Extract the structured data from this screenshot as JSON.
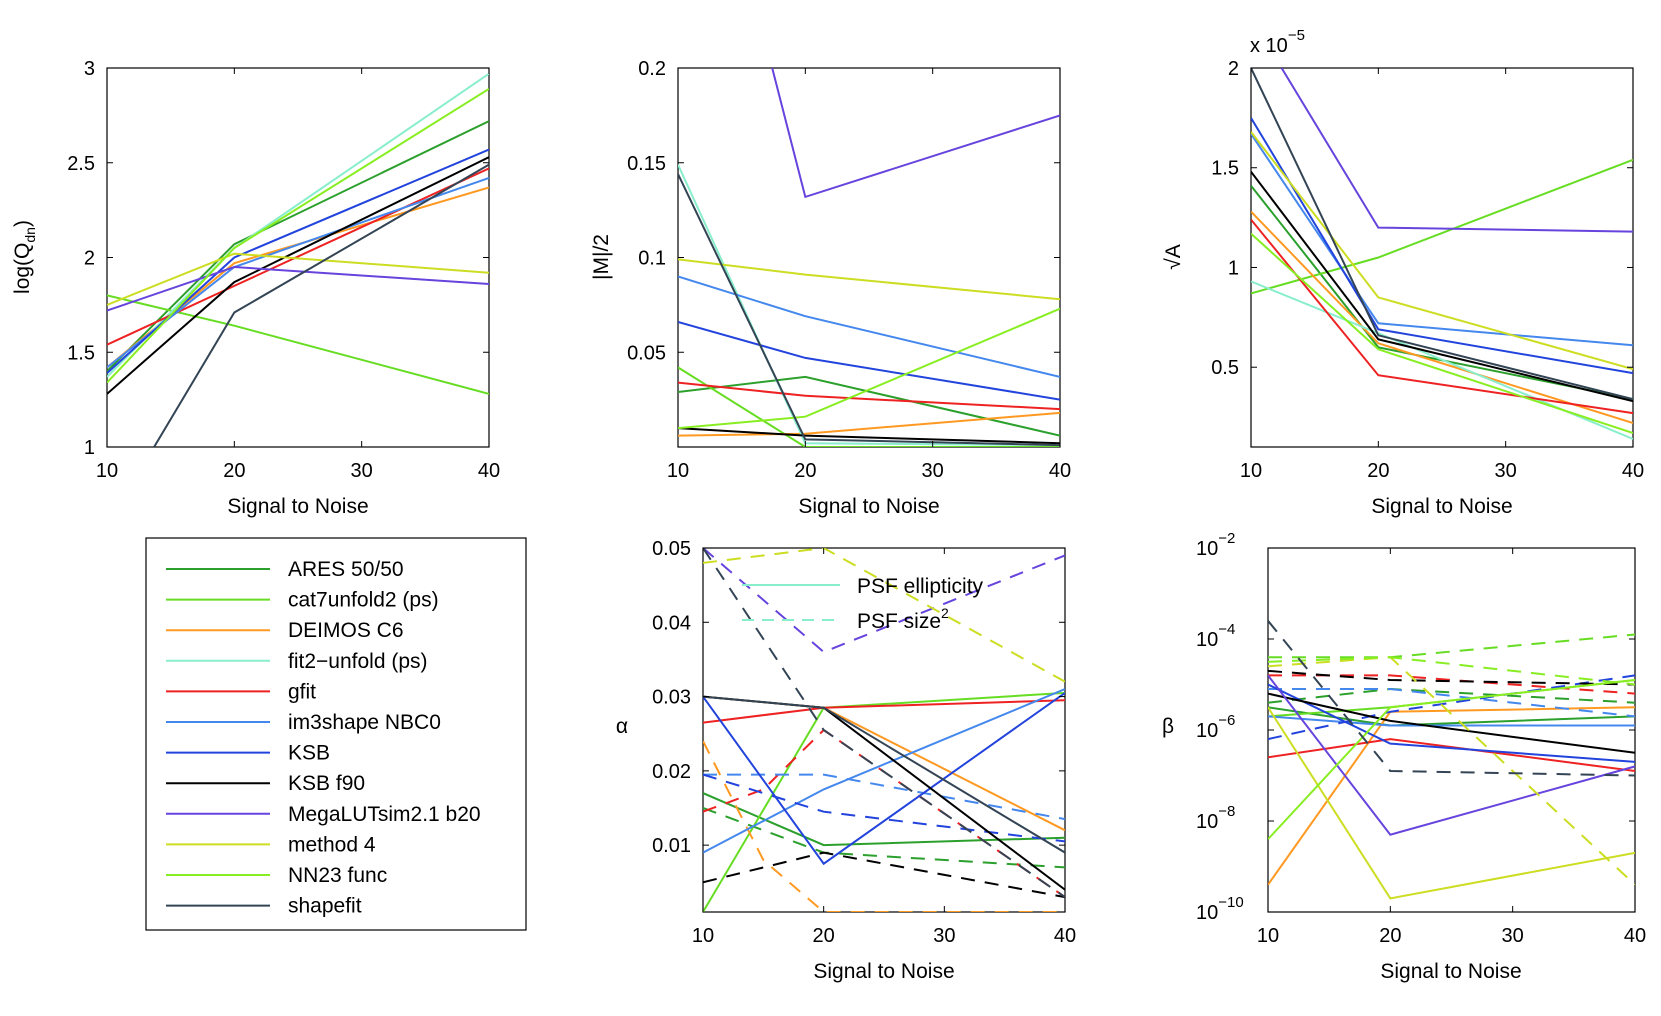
{
  "colors": {
    "ARES": "#2ca02c",
    "cat7": "#66dd22",
    "DEIMOS": "#ff9922",
    "fit2": "#88eecc",
    "gfit": "#ee2222",
    "im3": "#4488ee",
    "KSB": "#2244dd",
    "KSBf90": "#000000",
    "Mega": "#6644dd",
    "method4": "#ccdd22",
    "NN23": "#88ee22",
    "shapefit": "#334455"
  },
  "legend": {
    "entries": [
      {
        "key": "ARES",
        "label": "ARES 50/50"
      },
      {
        "key": "cat7",
        "label": "cat7unfold2 (ps)"
      },
      {
        "key": "DEIMOS",
        "label": "DEIMOS C6"
      },
      {
        "key": "fit2",
        "label": "fit2−unfold (ps)"
      },
      {
        "key": "gfit",
        "label": "gfit"
      },
      {
        "key": "im3",
        "label": "im3shape NBC0"
      },
      {
        "key": "KSB",
        "label": "KSB"
      },
      {
        "key": "KSBf90",
        "label": "KSB f90"
      },
      {
        "key": "Mega",
        "label": "MegaLUTsim2.1 b20"
      },
      {
        "key": "method4",
        "label": "method 4"
      },
      {
        "key": "NN23",
        "label": "NN23 func"
      },
      {
        "key": "shapefit",
        "label": "shapefit"
      }
    ]
  },
  "chart_data": [
    {
      "id": "q",
      "type": "line",
      "title": "",
      "xlabel": "Signal to Noise",
      "ylabel_main": "log(Q",
      "ylabel_sub": "dn",
      "ylabel_end": ")",
      "x": [
        10,
        20,
        40
      ],
      "xlim": [
        10,
        40
      ],
      "ylim": [
        1,
        3
      ],
      "xticks": [
        10,
        20,
        30,
        40
      ],
      "xtick_labels": [
        "10",
        "20",
        "30",
        "40"
      ],
      "yticks": [
        1,
        1.5,
        2,
        2.5,
        3
      ],
      "ytick_labels": [
        "1",
        "1.5",
        "2",
        "2.5",
        "3"
      ],
      "series": [
        {
          "key": "ARES",
          "values": [
            1.4,
            2.07,
            2.72
          ]
        },
        {
          "key": "cat7",
          "values": [
            1.8,
            1.64,
            1.28
          ]
        },
        {
          "key": "DEIMOS",
          "values": [
            1.42,
            1.97,
            2.37
          ]
        },
        {
          "key": "fit2",
          "values": [
            1.37,
            2.05,
            2.97
          ]
        },
        {
          "key": "gfit",
          "values": [
            1.54,
            1.85,
            2.47
          ]
        },
        {
          "key": "im3",
          "values": [
            1.42,
            1.95,
            2.42
          ]
        },
        {
          "key": "KSB",
          "values": [
            1.39,
            2.0,
            2.57
          ]
        },
        {
          "key": "KSBf90",
          "values": [
            1.28,
            1.87,
            2.53
          ]
        },
        {
          "key": "Mega",
          "values": [
            1.72,
            1.95,
            1.86
          ]
        },
        {
          "key": "method4",
          "values": [
            1.75,
            2.02,
            1.92
          ]
        },
        {
          "key": "NN23",
          "values": [
            1.34,
            2.05,
            2.89
          ]
        },
        {
          "key": "shapefit",
          "x": [
            13.7,
            20,
            40
          ],
          "values": [
            1.0,
            1.71,
            2.49
          ]
        }
      ]
    },
    {
      "id": "m",
      "type": "line",
      "title": "",
      "xlabel": "Signal to Noise",
      "ylabel": "|M|/2",
      "x": [
        10,
        20,
        40
      ],
      "xlim": [
        10,
        40
      ],
      "ylim": [
        0,
        0.2
      ],
      "xticks": [
        10,
        20,
        30,
        40
      ],
      "xtick_labels": [
        "10",
        "20",
        "30",
        "40"
      ],
      "yticks": [
        0.05,
        0.1,
        0.15,
        0.2
      ],
      "ytick_labels": [
        "0.05",
        "0.1",
        "0.15",
        "0.2"
      ],
      "series": [
        {
          "key": "ARES",
          "values": [
            0.029,
            0.037,
            0.006
          ]
        },
        {
          "key": "cat7",
          "values": [
            0.042,
            0.0,
            0.0
          ]
        },
        {
          "key": "DEIMOS",
          "values": [
            0.006,
            0.007,
            0.018
          ]
        },
        {
          "key": "fit2",
          "values": [
            0.149,
            0.002,
            0.001
          ]
        },
        {
          "key": "gfit",
          "values": [
            0.034,
            0.027,
            0.02
          ]
        },
        {
          "key": "im3",
          "values": [
            0.09,
            0.069,
            0.037
          ]
        },
        {
          "key": "KSB",
          "values": [
            0.066,
            0.047,
            0.025
          ]
        },
        {
          "key": "KSBf90",
          "values": [
            0.01,
            0.006,
            0.002
          ]
        },
        {
          "key": "Mega",
          "x": [
            17.4,
            20,
            40
          ],
          "values": [
            0.2,
            0.132,
            0.175
          ]
        },
        {
          "key": "method4",
          "values": [
            0.099,
            0.091,
            0.078
          ]
        },
        {
          "key": "NN23",
          "values": [
            0.01,
            0.016,
            0.073
          ]
        },
        {
          "key": "shapefit",
          "values": [
            0.144,
            0.004,
            0.001
          ]
        }
      ]
    },
    {
      "id": "a",
      "type": "line",
      "title": "",
      "xlabel": "Signal to Noise",
      "ylabel": "√A",
      "exponent_base": "x 10",
      "exponent_power": "−5",
      "x": [
        10,
        20,
        40
      ],
      "xlim": [
        10,
        40
      ],
      "ylim": [
        0.1,
        2.0
      ],
      "xticks": [
        10,
        20,
        30,
        40
      ],
      "xtick_labels": [
        "10",
        "20",
        "30",
        "40"
      ],
      "yticks": [
        0.5,
        1.0,
        1.5,
        2.0
      ],
      "ytick_labels": [
        "0.5",
        "1",
        "1.5",
        "2"
      ],
      "series": [
        {
          "key": "ARES",
          "values": [
            1.41,
            0.6,
            0.34
          ]
        },
        {
          "key": "cat7",
          "values": [
            0.87,
            1.05,
            1.54
          ]
        },
        {
          "key": "DEIMOS",
          "values": [
            1.28,
            0.62,
            0.22
          ]
        },
        {
          "key": "fit2",
          "values": [
            0.93,
            0.67,
            0.14
          ]
        },
        {
          "key": "gfit",
          "values": [
            1.24,
            0.46,
            0.27
          ]
        },
        {
          "key": "im3",
          "values": [
            1.67,
            0.72,
            0.61
          ]
        },
        {
          "key": "KSB",
          "values": [
            1.75,
            0.69,
            0.47
          ]
        },
        {
          "key": "KSBf90",
          "values": [
            1.48,
            0.64,
            0.33
          ]
        },
        {
          "key": "Mega",
          "x": [
            12.4,
            20,
            40
          ],
          "values": [
            2.0,
            1.2,
            1.18
          ]
        },
        {
          "key": "method4",
          "values": [
            1.68,
            0.85,
            0.49
          ]
        },
        {
          "key": "NN23",
          "values": [
            1.17,
            0.59,
            0.17
          ]
        },
        {
          "key": "shapefit",
          "values": [
            2.0,
            0.66,
            0.34
          ]
        }
      ]
    },
    {
      "id": "alpha",
      "type": "line",
      "title": "",
      "xlabel": "Signal to Noise",
      "ylabel": "α",
      "x": [
        10,
        20,
        40
      ],
      "xlim": [
        10,
        40
      ],
      "ylim": [
        0.001,
        0.05
      ],
      "xticks": [
        10,
        20,
        30,
        40
      ],
      "xtick_labels": [
        "10",
        "20",
        "30",
        "40"
      ],
      "yticks": [
        0.01,
        0.02,
        0.03,
        0.04,
        0.05
      ],
      "ytick_labels": [
        "0.01",
        "0.02",
        "0.03",
        "0.04",
        "0.05"
      ],
      "inner_legend": [
        {
          "key": "fit2",
          "dash": false,
          "label": "PSF ellipticity"
        },
        {
          "key": "fit2",
          "dash": true,
          "label": "PSF size",
          "sup": "2"
        }
      ],
      "series": [
        {
          "key": "ARES",
          "dash": false,
          "values": [
            0.017,
            0.01,
            0.011
          ]
        },
        {
          "key": "ARES",
          "dash": true,
          "values": [
            0.015,
            0.009,
            0.007
          ]
        },
        {
          "key": "cat7",
          "dash": false,
          "values": [
            0.001,
            0.0285,
            0.0305
          ]
        },
        {
          "key": "DEIMOS",
          "dash": false,
          "values": [
            0.03,
            0.0285,
            0.012
          ]
        },
        {
          "key": "DEIMOS",
          "dash": true,
          "x": [
            10,
            15,
            20,
            40
          ],
          "values": [
            0.024,
            0.008,
            0.001,
            0.001
          ]
        },
        {
          "key": "gfit",
          "dash": false,
          "values": [
            0.0265,
            0.0285,
            0.0295
          ]
        },
        {
          "key": "gfit",
          "dash": true,
          "x": [
            10,
            15,
            20,
            40
          ],
          "values": [
            0.0145,
            0.0175,
            0.0255,
            0.003
          ]
        },
        {
          "key": "im3",
          "dash": false,
          "values": [
            0.009,
            0.0175,
            0.031
          ]
        },
        {
          "key": "im3",
          "dash": true,
          "values": [
            0.0195,
            0.0195,
            0.0135
          ]
        },
        {
          "key": "KSB",
          "dash": false,
          "values": [
            0.03,
            0.0075,
            0.0305
          ]
        },
        {
          "key": "KSB",
          "dash": true,
          "values": [
            0.0195,
            0.0145,
            0.0105
          ]
        },
        {
          "key": "KSBf90",
          "dash": false,
          "values": [
            0.03,
            0.0285,
            0.004
          ]
        },
        {
          "key": "KSBf90",
          "dash": true,
          "values": [
            0.005,
            0.009,
            0.003
          ]
        },
        {
          "key": "Mega",
          "dash": true,
          "values": [
            0.05,
            0.036,
            0.049
          ]
        },
        {
          "key": "method4",
          "dash": true,
          "values": [
            0.048,
            0.05,
            0.032
          ]
        },
        {
          "key": "shapefit",
          "dash": false,
          "values": [
            0.03,
            0.0285,
            0.009
          ]
        },
        {
          "key": "shapefit",
          "dash": true,
          "values": [
            0.05,
            0.0255,
            0.003
          ]
        }
      ]
    },
    {
      "id": "beta",
      "type": "line",
      "title": "",
      "xlabel": "Signal to Noise",
      "ylabel": "β",
      "x": [
        10,
        20,
        40
      ],
      "xlim": [
        10,
        40
      ],
      "ylim": [
        -10,
        -2
      ],
      "yscale": "log",
      "xticks": [
        10,
        20,
        30,
        40
      ],
      "xtick_labels": [
        "10",
        "20",
        "30",
        "40"
      ],
      "yticks": [
        -10,
        -8,
        -6,
        -4,
        -2
      ],
      "ytick_labels": [
        "10",
        "10",
        "10",
        "10",
        "10"
      ],
      "ytick_powers": [
        "−10",
        "−8",
        "−6",
        "−4",
        "−2"
      ],
      "series": [
        {
          "key": "ARES",
          "dash": false,
          "values": [
            -5.5,
            -5.9,
            -5.7
          ]
        },
        {
          "key": "ARES",
          "dash": true,
          "values": [
            -5.4,
            -5.1,
            -5.4
          ]
        },
        {
          "key": "cat7",
          "dash": false,
          "values": [
            -5.7,
            -5.5,
            -4.9
          ]
        },
        {
          "key": "cat7",
          "dash": true,
          "values": [
            -4.4,
            -4.4,
            -3.9
          ]
        },
        {
          "key": "DEIMOS",
          "dash": false,
          "values": [
            -9.4,
            -5.6,
            -5.5
          ]
        },
        {
          "key": "gfit",
          "dash": false,
          "values": [
            -6.6,
            -6.2,
            -6.9
          ]
        },
        {
          "key": "gfit",
          "dash": true,
          "values": [
            -4.8,
            -4.8,
            -5.2
          ]
        },
        {
          "key": "im3",
          "dash": false,
          "values": [
            -5.7,
            -5.9,
            -5.9
          ]
        },
        {
          "key": "im3",
          "dash": true,
          "values": [
            -5.1,
            -5.1,
            -5.7
          ]
        },
        {
          "key": "KSB",
          "dash": false,
          "values": [
            -5.0,
            -6.3,
            -6.7
          ]
        },
        {
          "key": "KSB",
          "dash": true,
          "values": [
            -6.2,
            -5.6,
            -4.8
          ]
        },
        {
          "key": "KSBf90",
          "dash": false,
          "values": [
            -5.2,
            -5.8,
            -6.5
          ]
        },
        {
          "key": "KSBf90",
          "dash": true,
          "values": [
            -4.7,
            -4.9,
            -5.0
          ]
        },
        {
          "key": "Mega",
          "dash": false,
          "values": [
            -4.8,
            -8.3,
            -6.8
          ]
        },
        {
          "key": "method4",
          "dash": false,
          "values": [
            -5.5,
            -9.7,
            -8.7
          ]
        },
        {
          "key": "method4",
          "dash": true,
          "values": [
            -4.6,
            -4.4,
            -9.4
          ]
        },
        {
          "key": "NN23",
          "dash": false,
          "values": [
            -8.4,
            -5.5,
            -4.9
          ]
        },
        {
          "key": "NN23",
          "dash": true,
          "values": [
            -4.5,
            -4.4,
            -5.0
          ]
        },
        {
          "key": "shapefit",
          "dash": true,
          "x": [
            10,
            20,
            40
          ],
          "values": [
            -3.6,
            -6.9,
            -7.0
          ]
        }
      ]
    }
  ]
}
